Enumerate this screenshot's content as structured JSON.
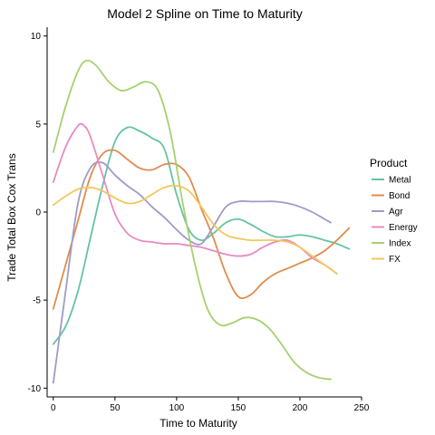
{
  "chart_data": {
    "type": "line",
    "title": "Model 2 Spline on Time to Maturity",
    "xlabel": "Time to Maturity",
    "ylabel": "Trade Total Box Cox Trans",
    "xlim": [
      -5,
      250
    ],
    "ylim": [
      -10.5,
      10.5
    ],
    "xticks": [
      0,
      50,
      100,
      150,
      200,
      250
    ],
    "yticks": [
      -10,
      -5,
      0,
      5,
      10
    ],
    "grid": false,
    "legend": {
      "title": "Product",
      "placement": "right"
    },
    "series": [
      {
        "name": "Metal",
        "color": "#66c2a5",
        "x": [
          0,
          10,
          20,
          30,
          40,
          50,
          60,
          70,
          80,
          90,
          100,
          110,
          120,
          130,
          140,
          150,
          160,
          170,
          180,
          190,
          200,
          210,
          220,
          230,
          240
        ],
        "y": [
          -7.5,
          -6.5,
          -4.5,
          -1.5,
          1.5,
          4.0,
          4.8,
          4.6,
          4.2,
          3.6,
          1.0,
          -1.0,
          -1.6,
          -1.2,
          -0.6,
          -0.4,
          -0.7,
          -1.1,
          -1.4,
          -1.4,
          -1.3,
          -1.4,
          -1.6,
          -1.8,
          -2.1
        ]
      },
      {
        "name": "Bond",
        "color": "#e08c4e",
        "x": [
          0,
          10,
          20,
          30,
          40,
          50,
          60,
          70,
          80,
          90,
          100,
          110,
          120,
          130,
          140,
          150,
          160,
          170,
          180,
          190,
          200,
          210,
          220,
          230,
          240
        ],
        "y": [
          -5.5,
          -3.0,
          -0.5,
          2.0,
          3.3,
          3.5,
          3.0,
          2.5,
          2.4,
          2.7,
          2.7,
          2.0,
          0.2,
          -1.5,
          -3.5,
          -4.8,
          -4.7,
          -4.0,
          -3.5,
          -3.2,
          -2.9,
          -2.6,
          -2.2,
          -1.6,
          -0.9
        ]
      },
      {
        "name": "Agr",
        "color": "#9f9bc9",
        "x": [
          0,
          10,
          20,
          30,
          40,
          50,
          60,
          70,
          80,
          90,
          100,
          110,
          120,
          130,
          140,
          150,
          160,
          170,
          180,
          190,
          200,
          210,
          220,
          225
        ],
        "y": [
          -9.7,
          -4.5,
          0.5,
          2.5,
          2.8,
          2.1,
          1.5,
          1.0,
          0.3,
          -0.3,
          -1.0,
          -1.6,
          -1.8,
          -0.8,
          0.3,
          0.6,
          0.6,
          0.6,
          0.6,
          0.5,
          0.3,
          0.0,
          -0.4,
          -0.6
        ]
      },
      {
        "name": "Energy",
        "color": "#e78ac3",
        "x": [
          0,
          10,
          20,
          25,
          30,
          40,
          50,
          60,
          70,
          80,
          90,
          100,
          110,
          120,
          130,
          140,
          150,
          160,
          170,
          180,
          190,
          200,
          210,
          220,
          230
        ],
        "y": [
          1.7,
          3.7,
          4.9,
          4.9,
          4.3,
          2.1,
          -0.1,
          -1.2,
          -1.6,
          -1.7,
          -1.8,
          -1.8,
          -1.9,
          -2.0,
          -2.2,
          -2.4,
          -2.5,
          -2.4,
          -2.0,
          -1.7,
          -1.6,
          -2.0,
          -2.6,
          -3.0,
          -3.5
        ]
      },
      {
        "name": "Index",
        "color": "#a6d170",
        "x": [
          0,
          10,
          20,
          27,
          35,
          45,
          55,
          65,
          75,
          85,
          95,
          105,
          115,
          125,
          135,
          145,
          155,
          165,
          175,
          185,
          195,
          205,
          215,
          225
        ],
        "y": [
          3.4,
          6.0,
          8.0,
          8.6,
          8.3,
          7.4,
          6.9,
          7.1,
          7.4,
          6.9,
          4.5,
          0.5,
          -3.0,
          -5.5,
          -6.4,
          -6.3,
          -6.0,
          -6.1,
          -6.6,
          -7.5,
          -8.5,
          -9.1,
          -9.4,
          -9.5
        ]
      },
      {
        "name": "FX",
        "color": "#f2c85b",
        "x": [
          0,
          10,
          20,
          30,
          40,
          50,
          60,
          70,
          80,
          90,
          100,
          110,
          120,
          130,
          140,
          150,
          160,
          170,
          180,
          190,
          200,
          210,
          220,
          230
        ],
        "y": [
          0.4,
          0.9,
          1.3,
          1.4,
          1.2,
          0.8,
          0.5,
          0.6,
          1.0,
          1.4,
          1.5,
          1.2,
          0.3,
          -0.7,
          -1.3,
          -1.5,
          -1.6,
          -1.6,
          -1.6,
          -1.7,
          -2.0,
          -2.5,
          -3.0,
          -3.5
        ]
      }
    ]
  }
}
